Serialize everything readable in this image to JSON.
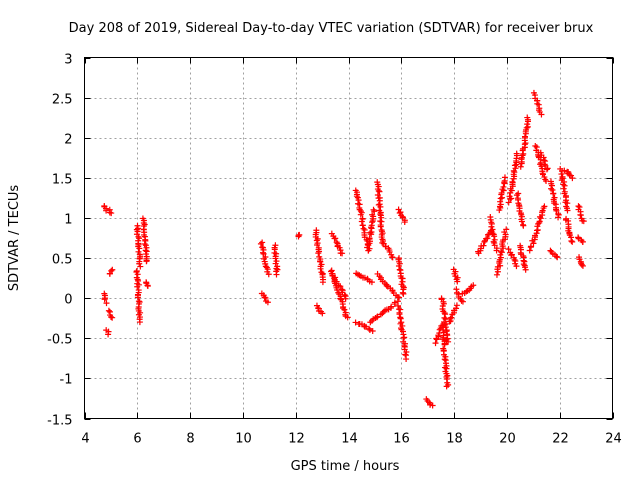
{
  "chart_data": {
    "type": "scatter",
    "title": "Day 208 of 2019, Sidereal Day-to-day VTEC variation (SDTVAR) for receiver brux",
    "xlabel": "GPS time / hours",
    "ylabel": "SDTVAR / TECUs",
    "xlim": [
      4,
      24
    ],
    "ylim": [
      -1.5,
      3
    ],
    "xticks": [
      "4",
      "6",
      "8",
      "10",
      "12",
      "14",
      "16",
      "18",
      "20",
      "22",
      "24"
    ],
    "yticks": [
      "-1.5",
      "-1",
      "-0.5",
      "0",
      "0.5",
      "1",
      "1.5",
      "2",
      "2.5",
      "3"
    ],
    "grid": true,
    "marker": "plus",
    "color": "#ff0000",
    "segments": [
      {
        "name": "seg-a1",
        "x0": 4.75,
        "x1": 4.85,
        "y0": 1.15,
        "y1": 1.1
      },
      {
        "name": "seg-a2",
        "x0": 4.95,
        "x1": 5.0,
        "y0": 1.1,
        "y1": 1.05
      },
      {
        "name": "seg-a3",
        "x0": 4.75,
        "x1": 4.8,
        "y0": 0.05,
        "y1": -0.05
      },
      {
        "name": "seg-a4",
        "x0": 4.85,
        "x1": 4.9,
        "y0": -0.4,
        "y1": -0.45
      },
      {
        "name": "seg-a5",
        "x0": 4.95,
        "x1": 5.05,
        "y0": 0.3,
        "y1": 0.35
      },
      {
        "name": "seg-a6",
        "x0": 4.95,
        "x1": 5.05,
        "y0": -0.15,
        "y1": -0.25
      },
      {
        "name": "seg-b1",
        "x0": 6.0,
        "x1": 6.1,
        "y0": 0.9,
        "y1": 0.4
      },
      {
        "name": "seg-b2",
        "x0": 6.0,
        "x1": 6.1,
        "y0": 0.35,
        "y1": -0.3
      },
      {
        "name": "seg-b3",
        "x0": 6.25,
        "x1": 6.35,
        "y0": 1.0,
        "y1": 0.45
      },
      {
        "name": "seg-b4",
        "x0": 6.3,
        "x1": 6.4,
        "y0": 0.2,
        "y1": 0.15
      },
      {
        "name": "seg-c1",
        "x0": 10.7,
        "x1": 10.95,
        "y0": 0.7,
        "y1": 0.3
      },
      {
        "name": "seg-c2",
        "x0": 10.75,
        "x1": 10.95,
        "y0": 0.05,
        "y1": -0.05
      },
      {
        "name": "seg-c3",
        "x0": 11.2,
        "x1": 11.3,
        "y0": 0.65,
        "y1": 0.3
      },
      {
        "name": "seg-c4",
        "x0": 12.1,
        "x1": 12.15,
        "y0": 0.78,
        "y1": 0.78
      },
      {
        "name": "seg-d1",
        "x0": 12.75,
        "x1": 13.05,
        "y0": 0.85,
        "y1": 0.2
      },
      {
        "name": "seg-d2",
        "x0": 12.8,
        "x1": 13.0,
        "y0": -0.1,
        "y1": -0.2
      },
      {
        "name": "seg-d3",
        "x0": 13.4,
        "x1": 13.75,
        "y0": 0.8,
        "y1": 0.55
      },
      {
        "name": "seg-d4",
        "x0": 13.35,
        "x1": 13.95,
        "y0": 0.35,
        "y1": -0.25
      },
      {
        "name": "seg-d5",
        "x0": 13.4,
        "x1": 13.9,
        "y0": 0.3,
        "y1": 0.0
      },
      {
        "name": "seg-e1",
        "x0": 14.3,
        "x1": 14.75,
        "y0": 1.35,
        "y1": 0.6
      },
      {
        "name": "seg-e2",
        "x0": 14.75,
        "x1": 14.95,
        "y0": 0.6,
        "y1": 1.1
      },
      {
        "name": "seg-e3",
        "x0": 14.3,
        "x1": 14.9,
        "y0": 0.3,
        "y1": 0.2
      },
      {
        "name": "seg-e4",
        "x0": 14.3,
        "x1": 14.9,
        "y0": -0.3,
        "y1": -0.4
      },
      {
        "name": "seg-f1",
        "x0": 15.1,
        "x1": 15.3,
        "y0": 1.45,
        "y1": 0.7
      },
      {
        "name": "seg-f2",
        "x0": 15.3,
        "x1": 15.7,
        "y0": 0.7,
        "y1": 0.5
      },
      {
        "name": "seg-f3",
        "x0": 15.1,
        "x1": 15.9,
        "y0": 0.3,
        "y1": 0.0
      },
      {
        "name": "seg-f4",
        "x0": 14.8,
        "x1": 15.85,
        "y0": -0.3,
        "y1": -0.05
      },
      {
        "name": "seg-g1",
        "x0": 15.9,
        "x1": 16.15,
        "y0": 1.1,
        "y1": 0.95
      },
      {
        "name": "seg-g2",
        "x0": 15.9,
        "x1": 16.1,
        "y0": 0.5,
        "y1": 0.05
      },
      {
        "name": "seg-g3",
        "x0": 15.9,
        "x1": 16.2,
        "y0": -0.1,
        "y1": -0.75
      },
      {
        "name": "seg-h1",
        "x0": 16.95,
        "x1": 17.15,
        "y0": -1.25,
        "y1": -1.35
      },
      {
        "name": "seg-h2",
        "x0": 17.3,
        "x1": 17.55,
        "y0": -0.55,
        "y1": -0.35
      },
      {
        "name": "seg-h3",
        "x0": 17.55,
        "x1": 17.75,
        "y0": -0.35,
        "y1": -1.1
      },
      {
        "name": "seg-h4",
        "x0": 17.55,
        "x1": 17.75,
        "y0": 0.0,
        "y1": -0.55
      },
      {
        "name": "seg-i1",
        "x0": 17.8,
        "x1": 18.1,
        "y0": -0.3,
        "y1": -0.1
      },
      {
        "name": "seg-i2",
        "x0": 18.0,
        "x1": 18.15,
        "y0": 0.35,
        "y1": 0.2
      },
      {
        "name": "seg-i3",
        "x0": 18.1,
        "x1": 18.3,
        "y0": 0.1,
        "y1": -0.05
      },
      {
        "name": "seg-i4",
        "x0": 18.3,
        "x1": 18.75,
        "y0": 0.05,
        "y1": 0.15
      },
      {
        "name": "seg-j1",
        "x0": 18.9,
        "x1": 19.4,
        "y0": 0.55,
        "y1": 0.85
      },
      {
        "name": "seg-j2",
        "x0": 19.35,
        "x1": 19.6,
        "y0": 1.0,
        "y1": 0.6
      },
      {
        "name": "seg-j3",
        "x0": 19.7,
        "x1": 19.95,
        "y0": 1.1,
        "y1": 1.5
      },
      {
        "name": "seg-j4",
        "x0": 19.65,
        "x1": 19.95,
        "y0": 0.3,
        "y1": 0.85
      },
      {
        "name": "seg-k1",
        "x0": 20.1,
        "x1": 20.4,
        "y0": 1.2,
        "y1": 1.8
      },
      {
        "name": "seg-k2",
        "x0": 20.1,
        "x1": 20.35,
        "y0": 0.6,
        "y1": 0.4
      },
      {
        "name": "seg-k3",
        "x0": 20.4,
        "x1": 20.6,
        "y0": 1.3,
        "y1": 0.9
      },
      {
        "name": "seg-k4",
        "x0": 20.55,
        "x1": 20.8,
        "y0": 1.65,
        "y1": 2.25
      },
      {
        "name": "seg-k5",
        "x0": 20.5,
        "x1": 20.7,
        "y0": 0.65,
        "y1": 0.35
      },
      {
        "name": "seg-l1",
        "x0": 21.05,
        "x1": 21.3,
        "y0": 2.55,
        "y1": 2.3
      },
      {
        "name": "seg-l2",
        "x0": 21.1,
        "x1": 21.45,
        "y0": 1.9,
        "y1": 1.45
      },
      {
        "name": "seg-l3",
        "x0": 20.9,
        "x1": 21.4,
        "y0": 0.6,
        "y1": 1.15
      },
      {
        "name": "seg-l4",
        "x0": 21.3,
        "x1": 21.55,
        "y0": 1.8,
        "y1": 1.6
      },
      {
        "name": "seg-m1",
        "x0": 21.65,
        "x1": 21.95,
        "y0": 1.45,
        "y1": 1.0
      },
      {
        "name": "seg-m2",
        "x0": 21.65,
        "x1": 21.9,
        "y0": 0.6,
        "y1": 0.5
      },
      {
        "name": "seg-m3",
        "x0": 22.05,
        "x1": 22.3,
        "y0": 1.6,
        "y1": 1.1
      },
      {
        "name": "seg-m4",
        "x0": 22.2,
        "x1": 22.5,
        "y0": 1.6,
        "y1": 1.5
      },
      {
        "name": "seg-m5",
        "x0": 22.25,
        "x1": 22.45,
        "y0": 1.0,
        "y1": 0.7
      },
      {
        "name": "seg-n1",
        "x0": 22.7,
        "x1": 22.9,
        "y0": 1.15,
        "y1": 0.95
      },
      {
        "name": "seg-n2",
        "x0": 22.7,
        "x1": 22.9,
        "y0": 0.75,
        "y1": 0.7
      },
      {
        "name": "seg-n3",
        "x0": 22.7,
        "x1": 22.9,
        "y0": 0.5,
        "y1": 0.4
      }
    ]
  }
}
